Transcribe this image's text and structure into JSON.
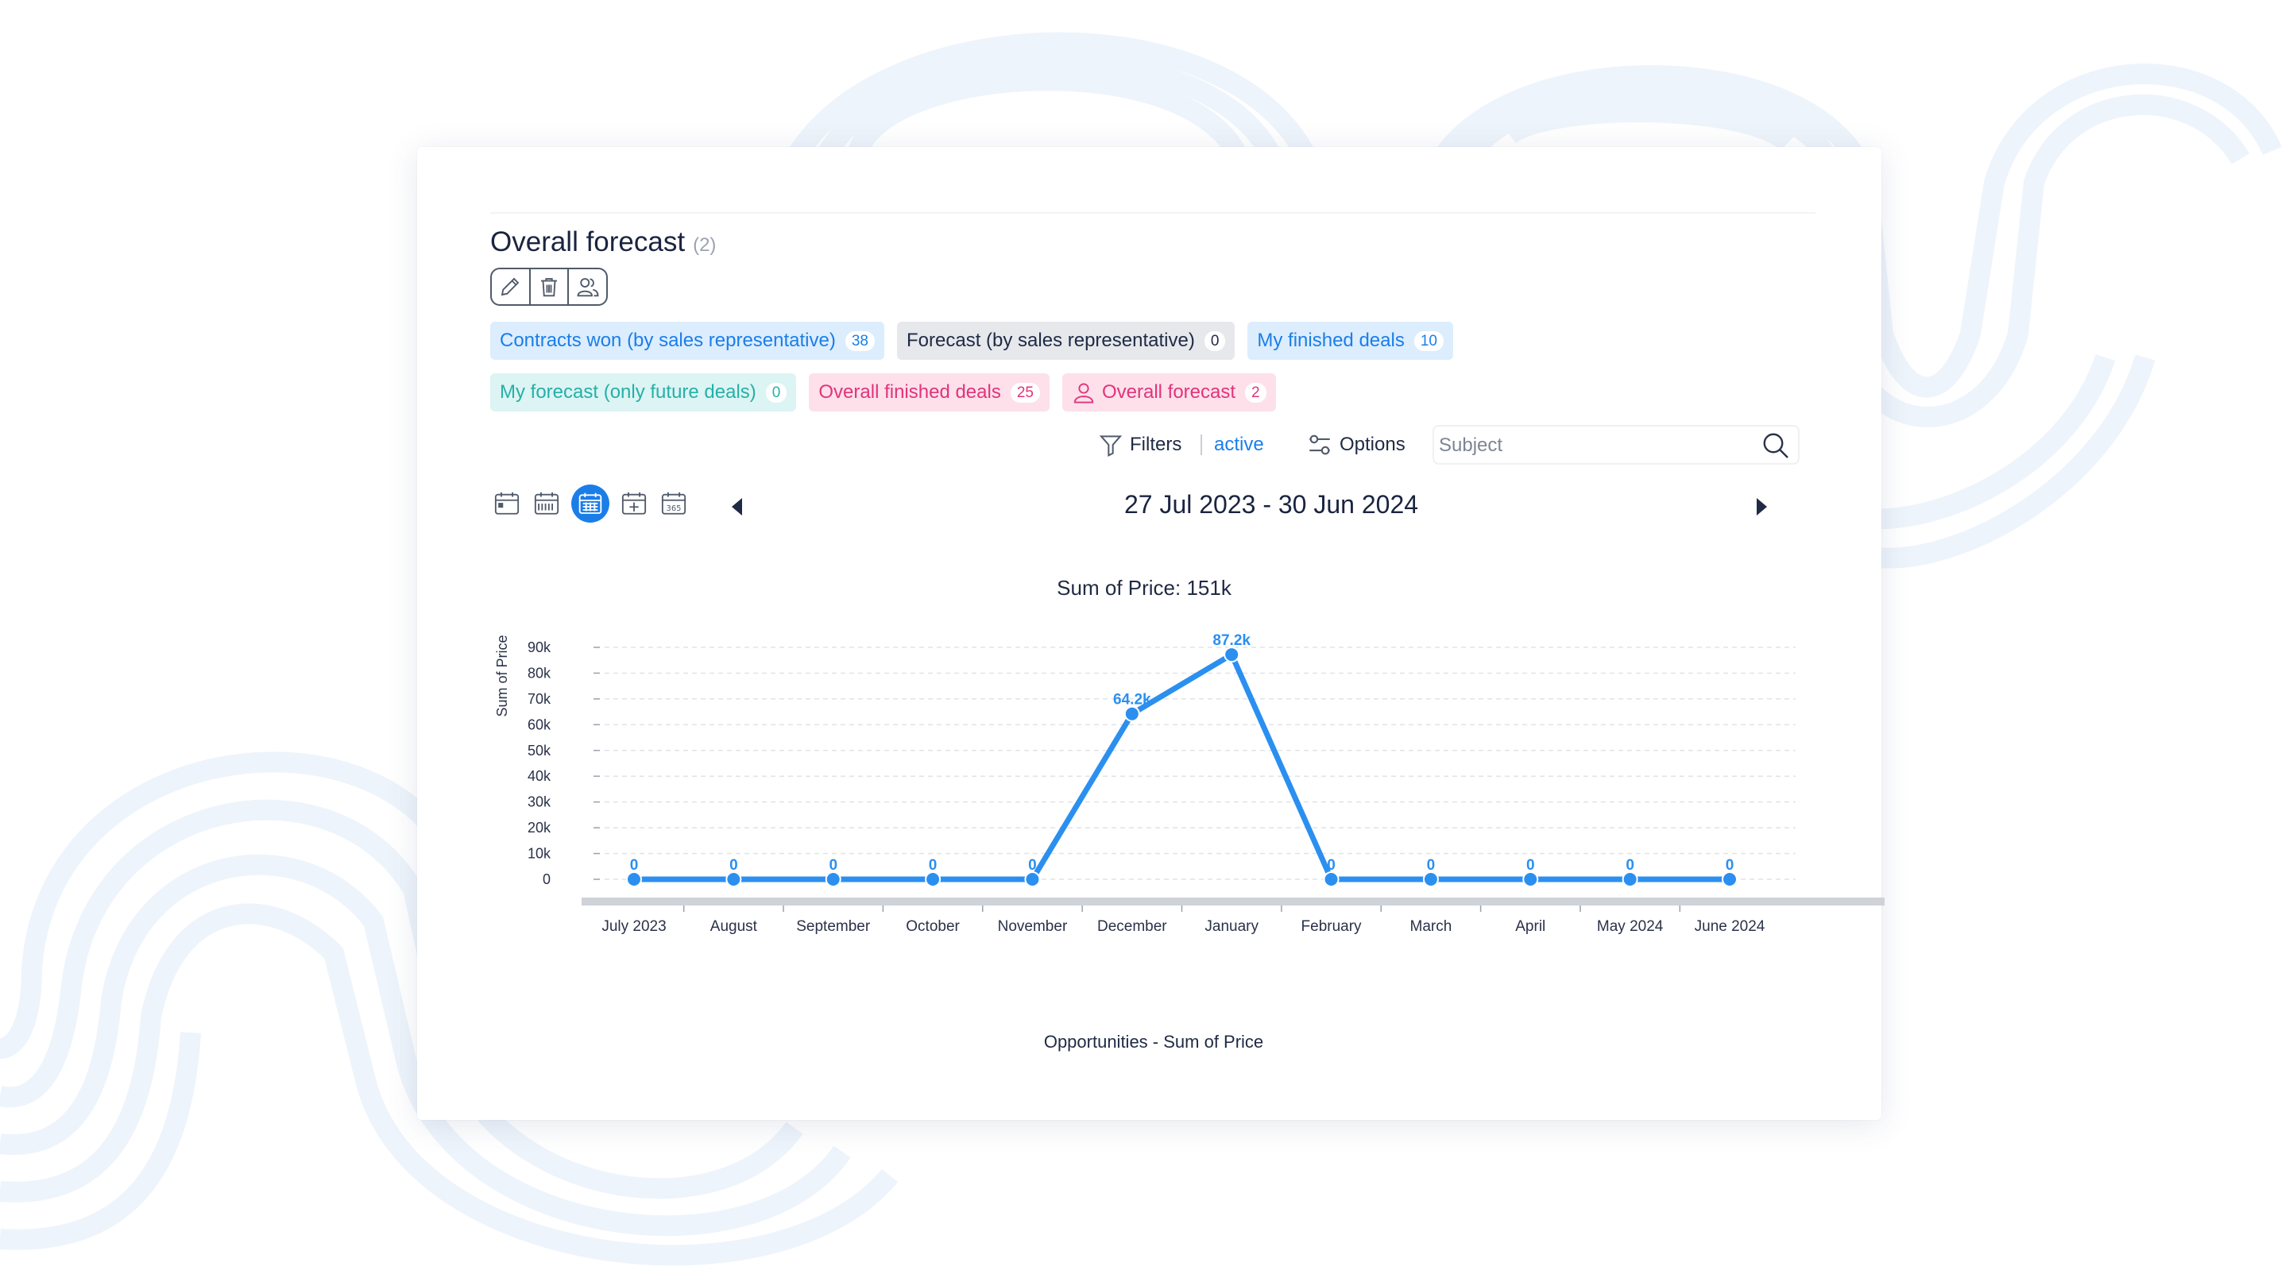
{
  "page": {
    "title": "Overall forecast",
    "title_count": "(2)"
  },
  "actions": [
    {
      "name": "edit-button",
      "icon": "pencil-icon"
    },
    {
      "name": "delete-button",
      "icon": "trash-icon"
    },
    {
      "name": "share-button",
      "icon": "users-icon"
    }
  ],
  "tabs": {
    "row1": [
      {
        "label": "Contracts won (by sales representative)",
        "count": "38",
        "style": "blue"
      },
      {
        "label": "Forecast (by sales representative)",
        "count": "0",
        "style": "gray"
      },
      {
        "label": "My finished deals",
        "count": "10",
        "style": "blue"
      }
    ],
    "row2": [
      {
        "label": "My forecast (only future deals)",
        "count": "0",
        "style": "teal"
      },
      {
        "label": "Overall finished deals",
        "count": "25",
        "style": "pink"
      },
      {
        "label": "Overall forecast",
        "count": "2",
        "style": "pink",
        "icon": "person-icon"
      }
    ]
  },
  "toolbar": {
    "filters_label": "Filters",
    "filters_state": "active",
    "options_label": "Options",
    "search_placeholder": "Subject"
  },
  "period": {
    "range": "27 Jul 2023 - 30 Jun 2024",
    "view_icons": [
      "day-view-icon",
      "week-view-icon",
      "month-view-icon",
      "quarter-view-icon",
      "year-view-icon"
    ],
    "selected_view": 2
  },
  "colors": {
    "accent": "#1b7ee8",
    "series": "#2b8ff0",
    "pink": "#e2337c",
    "teal": "#25b0a8"
  },
  "chart_data": {
    "type": "line",
    "title": "Sum of Price: 151k",
    "ylabel": "Sum of Price",
    "xlabel": "",
    "footer": "Opportunities - Sum of Price",
    "categories": [
      "July 2023",
      "August",
      "September",
      "October",
      "November",
      "December",
      "January",
      "February",
      "March",
      "April",
      "May 2024",
      "June 2024"
    ],
    "series": [
      {
        "values": [
          0,
          0,
          0,
          0,
          0,
          64200,
          87200,
          0,
          0,
          0,
          0,
          0
        ],
        "data_labels": [
          "0",
          "0",
          "0",
          "0",
          "0",
          "64.2k",
          "87.2k",
          "0",
          "0",
          "0",
          "0",
          "0"
        ]
      }
    ],
    "yticks": [
      0,
      10000,
      20000,
      30000,
      40000,
      50000,
      60000,
      70000,
      80000,
      90000
    ],
    "ytick_labels": [
      "0",
      "10k",
      "20k",
      "30k",
      "40k",
      "50k",
      "60k",
      "70k",
      "80k",
      "90k"
    ],
    "ylim": [
      0,
      90000
    ],
    "grid": true,
    "legend": "none"
  }
}
